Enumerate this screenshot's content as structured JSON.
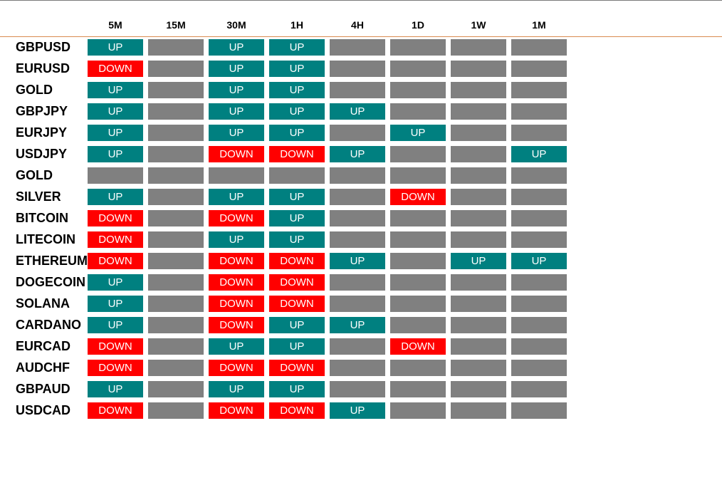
{
  "timeframes": [
    "5M",
    "15M",
    "30M",
    "1H",
    "4H",
    "1D",
    "1W",
    "1M"
  ],
  "colors": {
    "up": "#008080",
    "down": "#ff0000",
    "neutral": "#808080",
    "header_rule": "#d98a50"
  },
  "rows": [
    {
      "symbol": "GBPUSD",
      "signals": [
        "UP",
        "",
        "UP",
        "UP",
        "",
        "",
        "",
        ""
      ]
    },
    {
      "symbol": "EURUSD",
      "signals": [
        "DOWN",
        "",
        "UP",
        "UP",
        "",
        "",
        "",
        ""
      ]
    },
    {
      "symbol": "GOLD",
      "signals": [
        "UP",
        "",
        "UP",
        "UP",
        "",
        "",
        "",
        ""
      ]
    },
    {
      "symbol": "GBPJPY",
      "signals": [
        "UP",
        "",
        "UP",
        "UP",
        "UP",
        "",
        "",
        ""
      ]
    },
    {
      "symbol": "EURJPY",
      "signals": [
        "UP",
        "",
        "UP",
        "UP",
        "",
        "UP",
        "",
        ""
      ]
    },
    {
      "symbol": "USDJPY",
      "signals": [
        "UP",
        "",
        "DOWN",
        "DOWN",
        "UP",
        "",
        "",
        "UP"
      ]
    },
    {
      "symbol": "GOLD",
      "signals": [
        "",
        "",
        "",
        "",
        "",
        "",
        "",
        ""
      ]
    },
    {
      "symbol": "SILVER",
      "signals": [
        "UP",
        "",
        "UP",
        "UP",
        "",
        "DOWN",
        "",
        ""
      ]
    },
    {
      "symbol": "BITCOIN",
      "signals": [
        "DOWN",
        "",
        "DOWN",
        "UP",
        "",
        "",
        "",
        ""
      ]
    },
    {
      "symbol": "LITECOIN",
      "signals": [
        "DOWN",
        "",
        "UP",
        "UP",
        "",
        "",
        "",
        ""
      ]
    },
    {
      "symbol": "ETHEREUM",
      "signals": [
        "DOWN",
        "",
        "DOWN",
        "DOWN",
        "UP",
        "",
        "UP",
        "UP"
      ]
    },
    {
      "symbol": "DOGECOIN",
      "signals": [
        "UP",
        "",
        "DOWN",
        "DOWN",
        "",
        "",
        "",
        ""
      ]
    },
    {
      "symbol": "SOLANA",
      "signals": [
        "UP",
        "",
        "DOWN",
        "DOWN",
        "",
        "",
        "",
        ""
      ]
    },
    {
      "symbol": "CARDANO",
      "signals": [
        "UP",
        "",
        "DOWN",
        "UP",
        "UP",
        "",
        "",
        ""
      ]
    },
    {
      "symbol": "EURCAD",
      "signals": [
        "DOWN",
        "",
        "UP",
        "UP",
        "",
        "DOWN",
        "",
        ""
      ]
    },
    {
      "symbol": "AUDCHF",
      "signals": [
        "DOWN",
        "",
        "DOWN",
        "DOWN",
        "",
        "",
        "",
        ""
      ]
    },
    {
      "symbol": "GBPAUD",
      "signals": [
        "UP",
        "",
        "UP",
        "UP",
        "",
        "",
        "",
        ""
      ]
    },
    {
      "symbol": "USDCAD",
      "signals": [
        "DOWN",
        "",
        "DOWN",
        "DOWN",
        "UP",
        "",
        "",
        ""
      ]
    }
  ]
}
